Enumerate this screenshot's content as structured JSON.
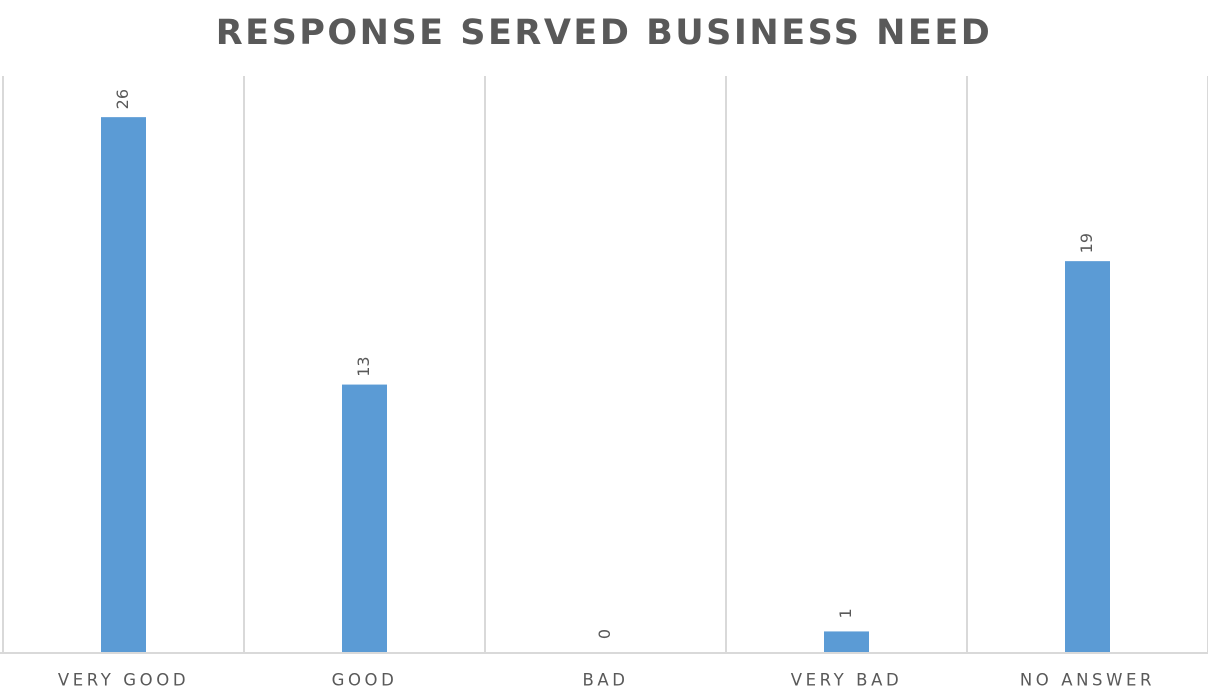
{
  "chart_data": {
    "type": "bar",
    "title": "RESPONSE SERVED BUSINESS NEED",
    "categories": [
      "VERY GOOD",
      "GOOD",
      "BAD",
      "VERY BAD",
      "NO ANSWER"
    ],
    "values": [
      26,
      13,
      0,
      1,
      19
    ],
    "xlabel": "",
    "ylabel": "",
    "ylim": [
      0,
      28
    ],
    "bar_color": "#5b9bd5",
    "grid": "vertical category separators",
    "legend": "none",
    "data_labels": "rotated, above bars"
  }
}
